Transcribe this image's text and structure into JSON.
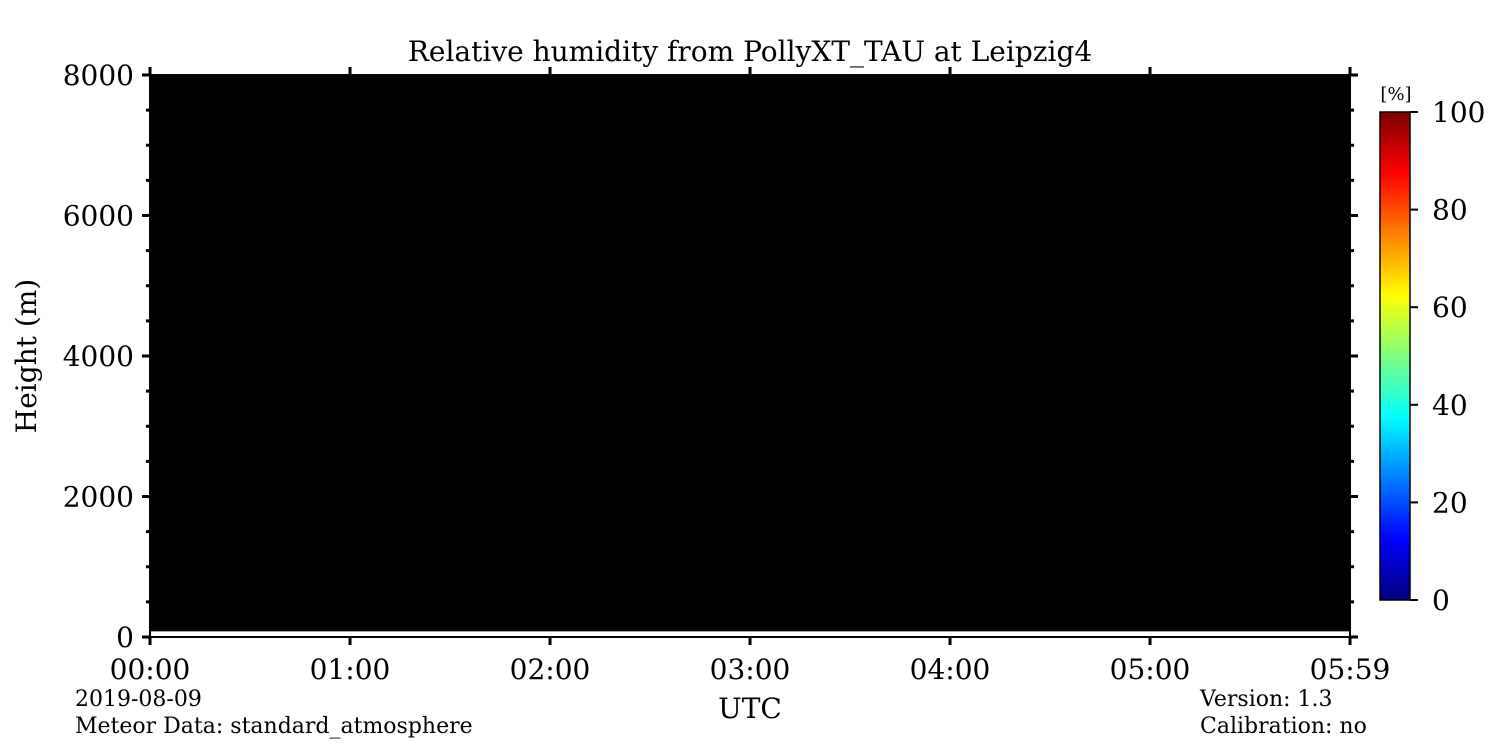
{
  "chart_data": {
    "type": "heatmap",
    "title": "Relative humidity from PollyXT_TAU at Leipzig4",
    "xlabel": "UTC",
    "ylabel": "Height (m)",
    "x_ticks": [
      "00:00",
      "01:00",
      "02:00",
      "03:00",
      "04:00",
      "05:00",
      "05:59"
    ],
    "y_ticks": [
      0,
      2000,
      4000,
      6000,
      8000
    ],
    "xlim": [
      "00:00",
      "05:59"
    ],
    "ylim": [
      0,
      8000
    ],
    "y_minor_step": 500,
    "plot_fill_color": "#000000",
    "data_note_values": "no valid data: entire plot area rendered as no-data (black) from approx. 80 m to 8000 m",
    "no_data_bottom_m": 80,
    "colorbar": {
      "label": "[%]",
      "ticks": [
        0,
        20,
        40,
        60,
        80,
        100
      ],
      "range": [
        0,
        100
      ],
      "colormap": "jet",
      "colors": [
        "#00007f",
        "#0000ff",
        "#007fff",
        "#00ffff",
        "#7fff7f",
        "#ffff00",
        "#ff7f00",
        "#ff0000",
        "#7f0000"
      ]
    }
  },
  "footer": {
    "date": "2019-08-09",
    "meteor": "Meteor Data: standard_atmosphere",
    "version": "Version: 1.3",
    "calibration": "Calibration: no"
  }
}
